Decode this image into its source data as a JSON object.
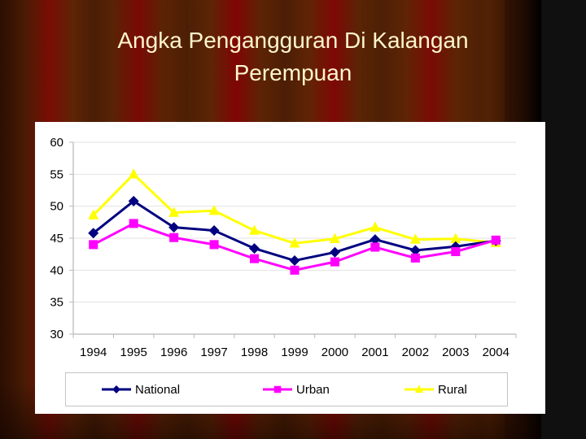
{
  "slide": {
    "title_line1": "Angka Pengangguran Di Kalangan",
    "title_line2": "Perempuan"
  },
  "chart_data": {
    "type": "line",
    "title": "Angka Pengangguran Di Kalangan Perempuan",
    "xlabel": "",
    "ylabel": "",
    "categories": [
      "1994",
      "1995",
      "1996",
      "1997",
      "1998",
      "1999",
      "2000",
      "2001",
      "2002",
      "2003",
      "2004"
    ],
    "ylim": [
      30,
      60
    ],
    "yticks": [
      30,
      35,
      40,
      45,
      50,
      55,
      60
    ],
    "grid": true,
    "legend_position": "bottom",
    "series": [
      {
        "name": "National",
        "color": "#000080",
        "marker": "diamond",
        "values": [
          45.8,
          50.8,
          46.7,
          46.2,
          43.4,
          41.5,
          42.8,
          44.8,
          43.1,
          43.7,
          44.6
        ]
      },
      {
        "name": "Urban",
        "color": "#ff00ff",
        "marker": "square",
        "values": [
          44.0,
          47.3,
          45.1,
          44.0,
          41.8,
          40.0,
          41.3,
          43.6,
          41.9,
          42.9,
          44.7
        ]
      },
      {
        "name": "Rural",
        "color": "#ffff00",
        "marker": "triangle",
        "values": [
          48.6,
          55.0,
          49.0,
          49.3,
          46.2,
          44.2,
          44.9,
          46.7,
          44.8,
          44.9,
          44.3
        ]
      }
    ]
  }
}
